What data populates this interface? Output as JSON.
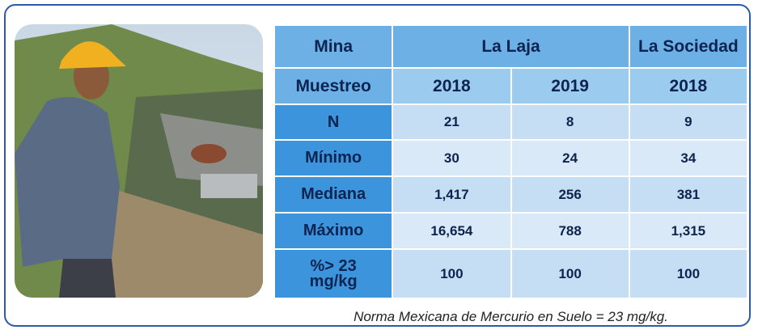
{
  "table": {
    "header_rows": [
      [
        "Mina",
        "La Laja",
        "La Sociedad"
      ],
      [
        "Muestreo",
        "2018",
        "2019",
        "2018"
      ]
    ],
    "rows": [
      [
        "N",
        "21",
        "8",
        "9"
      ],
      [
        "Mínimo",
        "30",
        "24",
        "34"
      ],
      [
        "Mediana",
        "1,417",
        "256",
        "381"
      ],
      [
        "Máximo",
        "16,654",
        "788",
        "1,315"
      ],
      [
        "%> 23 mg/kg",
        "100",
        "100",
        "100"
      ]
    ]
  },
  "note": "Norma Mexicana de Mercurio en Suelo = 23 mg/kg."
}
